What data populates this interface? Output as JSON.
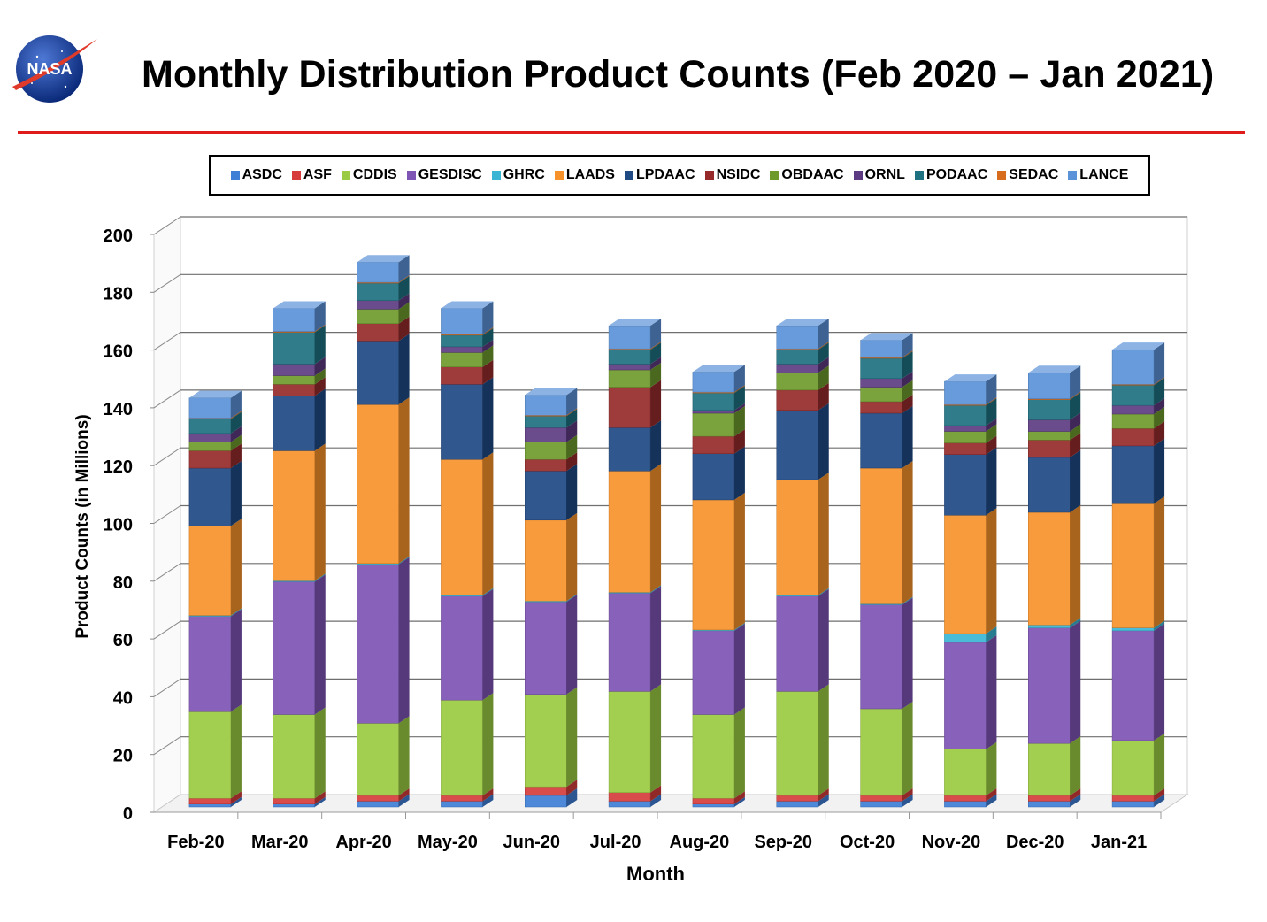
{
  "header": {
    "title": "Monthly Distribution Product Counts (Feb 2020 – Jan 2021)",
    "logo_text": "NASA"
  },
  "colors": {
    "ASDC": "#3f7fd6",
    "ASF": "#d63c3c",
    "CDDIS": "#9bcb42",
    "GESDISC": "#7e54b4",
    "GHRC": "#3ab6d4",
    "LAADS": "#f7922b",
    "LPDAAC": "#1f4a84",
    "NSIDC": "#962a2a",
    "OBDAAC": "#6e9a2c",
    "ORNL": "#5d3b82",
    "PODAAC": "#1e7180",
    "SEDAC": "#d76c1c",
    "LANCE": "#5b92d8",
    "title_rule": "#e01b1b"
  },
  "chart_data": {
    "type": "bar",
    "stacked": true,
    "three_d": true,
    "title": "Monthly Distribution Product Counts (Feb 2020 – Jan 2021)",
    "xlabel": "Month",
    "ylabel": "Product Counts (in Millions)",
    "ylim": [
      0,
      200
    ],
    "yticks": [
      0,
      20,
      40,
      60,
      80,
      100,
      120,
      140,
      160,
      180,
      200
    ],
    "grid": true,
    "legend_position": "top",
    "categories": [
      "Feb-20",
      "Mar-20",
      "Apr-20",
      "May-20",
      "Jun-20",
      "Jul-20",
      "Aug-20",
      "Sep-20",
      "Oct-20",
      "Nov-20",
      "Dec-20",
      "Jan-21"
    ],
    "series": [
      {
        "name": "ASDC",
        "values": [
          1,
          1,
          2,
          2,
          4,
          2,
          1,
          2,
          2,
          2,
          2,
          2
        ]
      },
      {
        "name": "ASF",
        "values": [
          2,
          2,
          2,
          2,
          3,
          3,
          2,
          2,
          2,
          2,
          2,
          2
        ]
      },
      {
        "name": "CDDIS",
        "values": [
          30,
          29,
          25,
          33,
          32,
          35,
          29,
          36,
          30,
          16,
          18,
          19
        ]
      },
      {
        "name": "GESDISC",
        "values": [
          33,
          46,
          55,
          36,
          32,
          34,
          29,
          33,
          36,
          37,
          40,
          38
        ]
      },
      {
        "name": "GHRC",
        "values": [
          0.3,
          0.3,
          0.3,
          0.3,
          0.3,
          0.3,
          0.3,
          0.3,
          0.3,
          3,
          1,
          1
        ]
      },
      {
        "name": "LAADS",
        "values": [
          31,
          45,
          55,
          47,
          28,
          42,
          45,
          40,
          47,
          41,
          39,
          43
        ]
      },
      {
        "name": "LPDAAC",
        "values": [
          20,
          19,
          22,
          26,
          17,
          15,
          16,
          24,
          19,
          21,
          19,
          20
        ]
      },
      {
        "name": "NSIDC",
        "values": [
          6,
          4,
          6,
          6,
          4,
          14,
          6,
          7,
          4,
          4,
          6,
          6
        ]
      },
      {
        "name": "OBDAAC",
        "values": [
          3,
          3,
          5,
          5,
          6,
          6,
          8,
          6,
          5,
          4,
          3,
          5
        ]
      },
      {
        "name": "ORNL",
        "values": [
          3,
          4,
          3,
          2,
          5,
          2,
          1,
          3,
          3,
          2,
          4,
          3
        ]
      },
      {
        "name": "PODAAC",
        "values": [
          5,
          11,
          6,
          4,
          4,
          5,
          6,
          5,
          7,
          7,
          7,
          7
        ]
      },
      {
        "name": "SEDAC",
        "values": [
          0.3,
          0.3,
          0.3,
          0.3,
          0.3,
          0.3,
          0.3,
          0.3,
          0.3,
          0.3,
          0.3,
          0.3
        ]
      },
      {
        "name": "LANCE",
        "values": [
          7,
          8,
          7,
          9,
          7,
          8,
          7,
          8,
          6,
          8,
          9,
          12
        ]
      }
    ]
  }
}
